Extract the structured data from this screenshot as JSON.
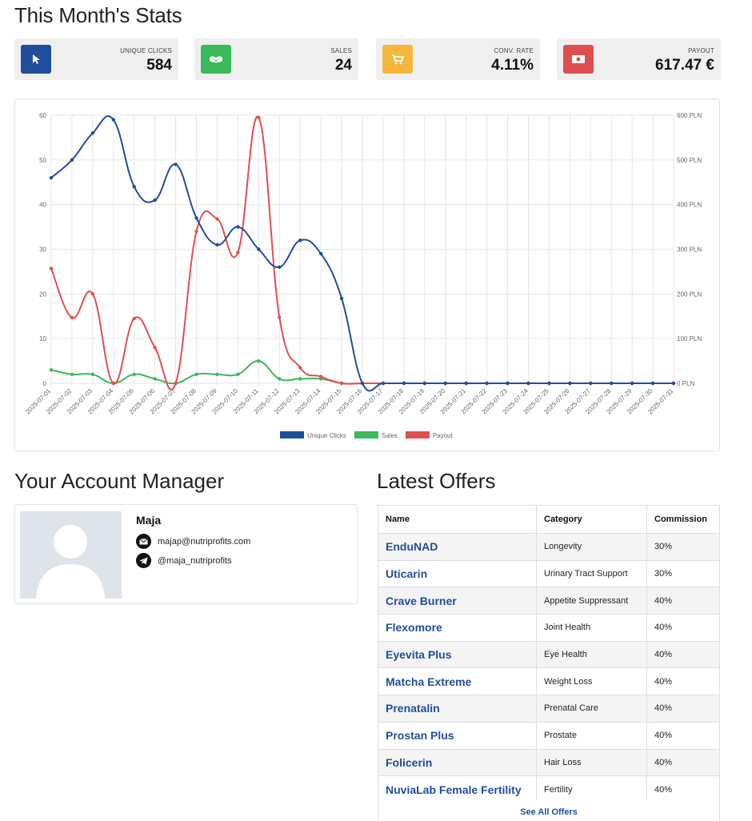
{
  "header": {
    "title": "This Month's Stats"
  },
  "stats": [
    {
      "label": "UNIQUE CLICKS",
      "value": "584",
      "color": "#1f4e9d",
      "icon": "cursor-icon"
    },
    {
      "label": "SALES",
      "value": "24",
      "color": "#3cb95a",
      "icon": "handshake-icon"
    },
    {
      "label": "CONV. RATE",
      "value": "4.11%",
      "color": "#f5b73b",
      "icon": "cart-icon"
    },
    {
      "label": "PAYOUT",
      "value": "617.47 €",
      "color": "#e04f4f",
      "icon": "money-icon"
    }
  ],
  "chart_data": {
    "type": "line",
    "x": [
      "2025-07-01",
      "2025-07-02",
      "2025-07-03",
      "2025-07-04",
      "2025-07-05",
      "2025-07-06",
      "2025-07-07",
      "2025-07-08",
      "2025-07-09",
      "2025-07-10",
      "2025-07-11",
      "2025-07-12",
      "2025-07-13",
      "2025-07-14",
      "2025-07-15",
      "2025-07-16",
      "2025-07-17",
      "2025-07-18",
      "2025-07-19",
      "2025-07-20",
      "2025-07-21",
      "2025-07-22",
      "2025-07-23",
      "2025-07-24",
      "2025-07-25",
      "2025-07-26",
      "2025-07-27",
      "2025-07-28",
      "2025-07-29",
      "2025-07-30",
      "2025-07-31"
    ],
    "y_left_ticks": [
      "0",
      "10",
      "20",
      "30",
      "40",
      "50",
      "60"
    ],
    "y_right_ticks": [
      "0 PLN",
      "100 PLN",
      "200 PLN",
      "300 PLN",
      "400 PLN",
      "500 PLN",
      "600 PLN"
    ],
    "ylim_left": [
      0,
      60
    ],
    "ylim_right": [
      0,
      600
    ],
    "grid": true,
    "legend_position": "bottom",
    "series": [
      {
        "name": "Unique Clicks",
        "axis": "left",
        "color": "#1f4e9d",
        "values": [
          46,
          50,
          56,
          59,
          44,
          41,
          49,
          37,
          31,
          35,
          30,
          26,
          32,
          29,
          19,
          0,
          0,
          0,
          0,
          0,
          0,
          0,
          0,
          0,
          0,
          0,
          0,
          0,
          0,
          0,
          0
        ]
      },
      {
        "name": "Sales",
        "axis": "left",
        "color": "#3cb95a",
        "values": [
          3,
          2,
          2,
          0,
          2,
          1,
          0,
          2,
          2,
          2,
          5,
          1,
          1,
          1,
          0,
          0,
          0,
          0,
          0,
          0,
          0,
          0,
          0,
          0,
          0,
          0,
          0,
          0,
          0,
          0,
          0
        ]
      },
      {
        "name": "Payout",
        "axis": "right",
        "color": "#e04f4f",
        "values": [
          257,
          147,
          200,
          0,
          145,
          80,
          0,
          340,
          368,
          293,
          595,
          148,
          35,
          15,
          0,
          0,
          0,
          0,
          0,
          0,
          0,
          0,
          0,
          0,
          0,
          0,
          0,
          0,
          0,
          0,
          0
        ]
      }
    ]
  },
  "manager": {
    "section_title": "Your Account Manager",
    "name": "Maja",
    "email": "majap@nutriprofits.com",
    "telegram": "@maja_nutriprofits"
  },
  "offers": {
    "section_title": "Latest Offers",
    "columns": [
      "Name",
      "Category",
      "Commission"
    ],
    "rows": [
      {
        "name": "EnduNAD",
        "category": "Longevity",
        "commission": "30%"
      },
      {
        "name": "Uticarin",
        "category": "Urinary Tract Support",
        "commission": "30%"
      },
      {
        "name": "Crave Burner",
        "category": "Appetite Suppressant",
        "commission": "40%"
      },
      {
        "name": "Flexomore",
        "category": "Joint Health",
        "commission": "40%"
      },
      {
        "name": "Eyevita Plus",
        "category": "Eye Health",
        "commission": "40%"
      },
      {
        "name": "Matcha Extreme",
        "category": "Weight Loss",
        "commission": "40%"
      },
      {
        "name": "Prenatalin",
        "category": "Prenatal Care",
        "commission": "40%"
      },
      {
        "name": "Prostan Plus",
        "category": "Prostate",
        "commission": "40%"
      },
      {
        "name": "Folicerin",
        "category": "Hair Loss",
        "commission": "40%"
      },
      {
        "name": "NuviaLab Female Fertility",
        "category": "Fertility",
        "commission": "40%"
      }
    ],
    "see_all_label": "See All Offers"
  }
}
